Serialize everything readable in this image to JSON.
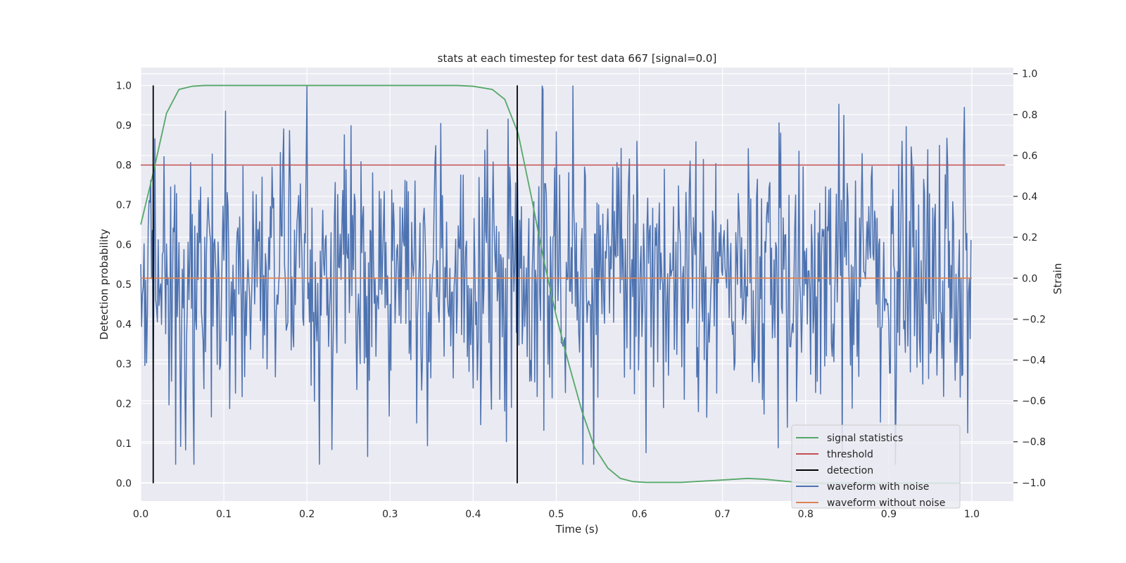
{
  "chart_data": {
    "type": "line",
    "title": "stats at each timestep for test data 667 [signal=0.0]",
    "xlabel": "Time (s)",
    "ylabel_left": "Detection probability",
    "ylabel_right": "Strain",
    "xlim": [
      0.0,
      1.05
    ],
    "ylim_left": [
      -0.045,
      1.045
    ],
    "ylim_right": [
      -1.09,
      1.03
    ],
    "x_ticks": [
      0.0,
      0.1,
      0.2,
      0.3,
      0.4,
      0.5,
      0.6,
      0.7,
      0.8,
      0.9,
      1.0
    ],
    "x_tick_labels": [
      "0.0",
      "0.1",
      "0.2",
      "0.3",
      "0.4",
      "0.5",
      "0.6",
      "0.7",
      "0.8",
      "0.9",
      "1.0"
    ],
    "y_left_ticks": [
      0.0,
      0.1,
      0.2,
      0.3,
      0.4,
      0.5,
      0.6,
      0.7,
      0.8,
      0.9,
      1.0
    ],
    "y_left_tick_labels": [
      "0.0",
      "0.1",
      "0.2",
      "0.3",
      "0.4",
      "0.5",
      "0.6",
      "0.7",
      "0.8",
      "0.9",
      "1.0"
    ],
    "y_right_ticks": [
      -1.0,
      -0.8,
      -0.6,
      -0.4,
      -0.2,
      0.0,
      0.2,
      0.4,
      0.6,
      0.8,
      1.0
    ],
    "y_right_tick_labels": [
      "−1.0",
      "−0.8",
      "−0.6",
      "−0.4",
      "−0.2",
      "0.0",
      "0.2",
      "0.4",
      "0.6",
      "0.8",
      "1.0"
    ],
    "grid": true,
    "legend_position": "lower-right",
    "series": [
      {
        "name": "signal statistics",
        "axis": "left",
        "color": "#55a868",
        "x": [
          0.0,
          0.015,
          0.031,
          0.046,
          0.062,
          0.077,
          0.1,
          0.2,
          0.3,
          0.38,
          0.4,
          0.423,
          0.438,
          0.454,
          0.47,
          0.485,
          0.5,
          0.515,
          0.531,
          0.546,
          0.562,
          0.577,
          0.592,
          0.608,
          0.65,
          0.7,
          0.73,
          0.75,
          0.8,
          0.85,
          0.9,
          0.95,
          0.985
        ],
        "values": [
          0.65,
          0.78,
          0.93,
          0.99,
          0.998,
          1.0,
          1.0,
          1.0,
          1.0,
          1.0,
          0.998,
          0.99,
          0.965,
          0.88,
          0.72,
          0.56,
          0.42,
          0.3,
          0.18,
          0.09,
          0.038,
          0.012,
          0.004,
          0.002,
          0.002,
          0.008,
          0.012,
          0.01,
          0.0,
          0.0,
          0.0,
          0.0,
          0.0
        ]
      },
      {
        "name": "threshold",
        "axis": "left",
        "color": "#c44e52",
        "x": [
          0.0,
          1.04
        ],
        "values": [
          0.8,
          0.8
        ]
      },
      {
        "name": "detection",
        "axis": "left",
        "color": "#000000",
        "type": "vlines",
        "x": [
          0.015,
          0.453
        ],
        "range": [
          0.0,
          1.0
        ]
      },
      {
        "name": "waveform with noise",
        "axis": "right",
        "color": "#4c72b0",
        "sample_rate": 1000,
        "peak_max": 0.94,
        "peak_min": -0.91,
        "std": 0.33,
        "seed": 667
      },
      {
        "name": "waveform without noise",
        "axis": "right",
        "color": "#dd8452",
        "x": [
          0.0,
          1.0
        ],
        "values": [
          0.0,
          0.0
        ]
      }
    ]
  }
}
